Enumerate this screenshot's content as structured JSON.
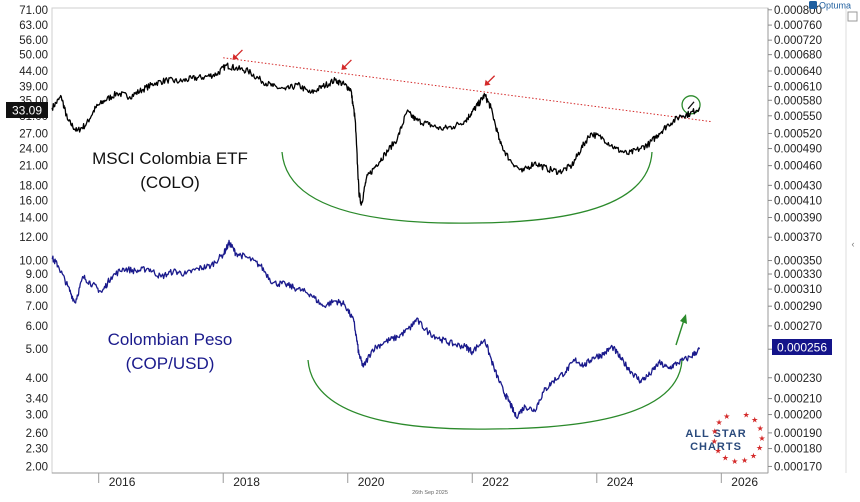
{
  "brand": "Optuma",
  "footer_date": "26th Sep 2025",
  "logo_text": [
    "ALL STAR",
    "CHARTS"
  ],
  "chart_data": {
    "type": "line",
    "x_ticks": [
      "2016",
      "2018",
      "2020",
      "2022",
      "2024",
      "2026"
    ],
    "x_range": [
      2015.25,
      2026.75
    ],
    "left_axis": {
      "scale": "log",
      "range": [
        1.9,
        72
      ],
      "tick_labels": [
        "71.00",
        "63.00",
        "56.00",
        "50.00",
        "44.00",
        "39.00",
        "35.00",
        "31.00",
        "27.00",
        "24.00",
        "21.00",
        "18.00",
        "16.00",
        "14.00",
        "12.00",
        "10.00",
        "9.00",
        "8.00",
        "7.00",
        "6.00",
        "5.00",
        "4.00",
        "3.40",
        "3.00",
        "2.60",
        "2.30",
        "2.00"
      ]
    },
    "right_axis": {
      "tick_labels": [
        "0.000800",
        "0.000760",
        "0.000720",
        "0.000680",
        "0.000640",
        "0.000610",
        "0.000580",
        "0.000550",
        "0.000520",
        "0.000490",
        "0.000460",
        "0.000430",
        "0.000410",
        "0.000390",
        "0.000370",
        "0.000350",
        "0.000330",
        "0.000310",
        "0.000290",
        "0.000270",
        "0.000250",
        "0.000230",
        "0.000210",
        "0.000200",
        "0.000190",
        "0.000180",
        "0.000170"
      ]
    },
    "series": [
      {
        "name": "MSCI Colombia ETF (COLO)",
        "color": "#000000",
        "last_value_label": "33.09",
        "label_lines": [
          "MSCI Colombia ETF",
          "(COLO)"
        ],
        "points": [
          [
            2015.25,
            33
          ],
          [
            2015.4,
            36
          ],
          [
            2015.5,
            30
          ],
          [
            2015.65,
            27.5
          ],
          [
            2015.8,
            29
          ],
          [
            2015.95,
            33
          ],
          [
            2016.1,
            35
          ],
          [
            2016.3,
            37
          ],
          [
            2016.5,
            36
          ],
          [
            2016.7,
            38
          ],
          [
            2016.9,
            40
          ],
          [
            2017.1,
            41
          ],
          [
            2017.3,
            40.5
          ],
          [
            2017.5,
            41.5
          ],
          [
            2017.7,
            42
          ],
          [
            2017.9,
            43
          ],
          [
            2018.05,
            46
          ],
          [
            2018.2,
            45
          ],
          [
            2018.4,
            44
          ],
          [
            2018.6,
            41
          ],
          [
            2018.8,
            39
          ],
          [
            2019.0,
            38
          ],
          [
            2019.2,
            39.5
          ],
          [
            2019.4,
            37
          ],
          [
            2019.6,
            39
          ],
          [
            2019.8,
            41
          ],
          [
            2019.95,
            39.5
          ],
          [
            2020.05,
            38
          ],
          [
            2020.12,
            30
          ],
          [
            2020.18,
            17
          ],
          [
            2020.22,
            15.5
          ],
          [
            2020.3,
            19
          ],
          [
            2020.45,
            21
          ],
          [
            2020.6,
            23
          ],
          [
            2020.8,
            26
          ],
          [
            2020.95,
            32
          ],
          [
            2021.1,
            30
          ],
          [
            2021.3,
            29
          ],
          [
            2021.5,
            28
          ],
          [
            2021.7,
            28.5
          ],
          [
            2021.9,
            30
          ],
          [
            2022.0,
            32
          ],
          [
            2022.1,
            34
          ],
          [
            2022.2,
            36.5
          ],
          [
            2022.3,
            33
          ],
          [
            2022.45,
            25
          ],
          [
            2022.6,
            22
          ],
          [
            2022.8,
            20
          ],
          [
            2023.0,
            21.5
          ],
          [
            2023.2,
            20.5
          ],
          [
            2023.4,
            20
          ],
          [
            2023.6,
            21
          ],
          [
            2023.75,
            24
          ],
          [
            2023.9,
            27
          ],
          [
            2024.1,
            26
          ],
          [
            2024.3,
            24
          ],
          [
            2024.5,
            23
          ],
          [
            2024.7,
            24
          ],
          [
            2024.85,
            25
          ],
          [
            2025.0,
            27
          ],
          [
            2025.15,
            29
          ],
          [
            2025.35,
            31
          ],
          [
            2025.5,
            31.5
          ],
          [
            2025.65,
            33.09
          ]
        ]
      },
      {
        "name": "Colombian Peso (COP/USD)",
        "color": "#1a1a8c",
        "last_value_label": "0.000256",
        "label_lines": [
          "Colombian Peso",
          "(COP/USD)"
        ],
        "points": [
          [
            2015.25,
            10.2
          ],
          [
            2015.35,
            9.6
          ],
          [
            2015.5,
            8.2
          ],
          [
            2015.62,
            7.2
          ],
          [
            2015.75,
            8.8
          ],
          [
            2015.9,
            8.3
          ],
          [
            2016.05,
            7.8
          ],
          [
            2016.2,
            8.8
          ],
          [
            2016.4,
            9.4
          ],
          [
            2016.6,
            9.2
          ],
          [
            2016.8,
            9.4
          ],
          [
            2017.0,
            8.8
          ],
          [
            2017.2,
            9.2
          ],
          [
            2017.4,
            9.0
          ],
          [
            2017.6,
            9.4
          ],
          [
            2017.8,
            9.6
          ],
          [
            2018.0,
            10.5
          ],
          [
            2018.1,
            11.5
          ],
          [
            2018.2,
            10.6
          ],
          [
            2018.4,
            10.2
          ],
          [
            2018.6,
            9.6
          ],
          [
            2018.8,
            8.4
          ],
          [
            2019.0,
            8.3
          ],
          [
            2019.2,
            8.0
          ],
          [
            2019.4,
            7.7
          ],
          [
            2019.6,
            7.0
          ],
          [
            2019.8,
            7.3
          ],
          [
            2019.95,
            7.1
          ],
          [
            2020.1,
            6.2
          ],
          [
            2020.18,
            4.8
          ],
          [
            2020.25,
            4.35
          ],
          [
            2020.4,
            5.0
          ],
          [
            2020.6,
            5.3
          ],
          [
            2020.8,
            5.5
          ],
          [
            2021.0,
            5.9
          ],
          [
            2021.1,
            6.3
          ],
          [
            2021.3,
            5.7
          ],
          [
            2021.5,
            5.4
          ],
          [
            2021.7,
            5.2
          ],
          [
            2021.9,
            5.1
          ],
          [
            2022.0,
            4.9
          ],
          [
            2022.2,
            5.4
          ],
          [
            2022.35,
            4.3
          ],
          [
            2022.5,
            3.6
          ],
          [
            2022.6,
            3.3
          ],
          [
            2022.7,
            2.95
          ],
          [
            2022.85,
            3.2
          ],
          [
            2023.0,
            3.1
          ],
          [
            2023.15,
            3.6
          ],
          [
            2023.3,
            3.9
          ],
          [
            2023.5,
            4.2
          ],
          [
            2023.65,
            4.6
          ],
          [
            2023.8,
            4.4
          ],
          [
            2023.95,
            4.7
          ],
          [
            2024.1,
            4.8
          ],
          [
            2024.25,
            5.1
          ],
          [
            2024.4,
            4.6
          ],
          [
            2024.55,
            4.2
          ],
          [
            2024.7,
            3.9
          ],
          [
            2024.85,
            4.1
          ],
          [
            2025.0,
            4.5
          ],
          [
            2025.15,
            4.3
          ],
          [
            2025.3,
            4.5
          ],
          [
            2025.5,
            4.7
          ],
          [
            2025.65,
            5.0
          ]
        ]
      }
    ],
    "annotations": {
      "trendline": {
        "from": [
          2018.0,
          48.8
        ],
        "to": [
          2025.85,
          29.6
        ],
        "style": "dotted",
        "color": "#d42a2a"
      },
      "red_arrows_at": [
        [
          2018.1,
          46.5
        ],
        [
          2019.85,
          43
        ],
        [
          2022.15,
          38
        ]
      ],
      "breakout_circle_at": [
        2025.45,
        33
      ]
    }
  }
}
